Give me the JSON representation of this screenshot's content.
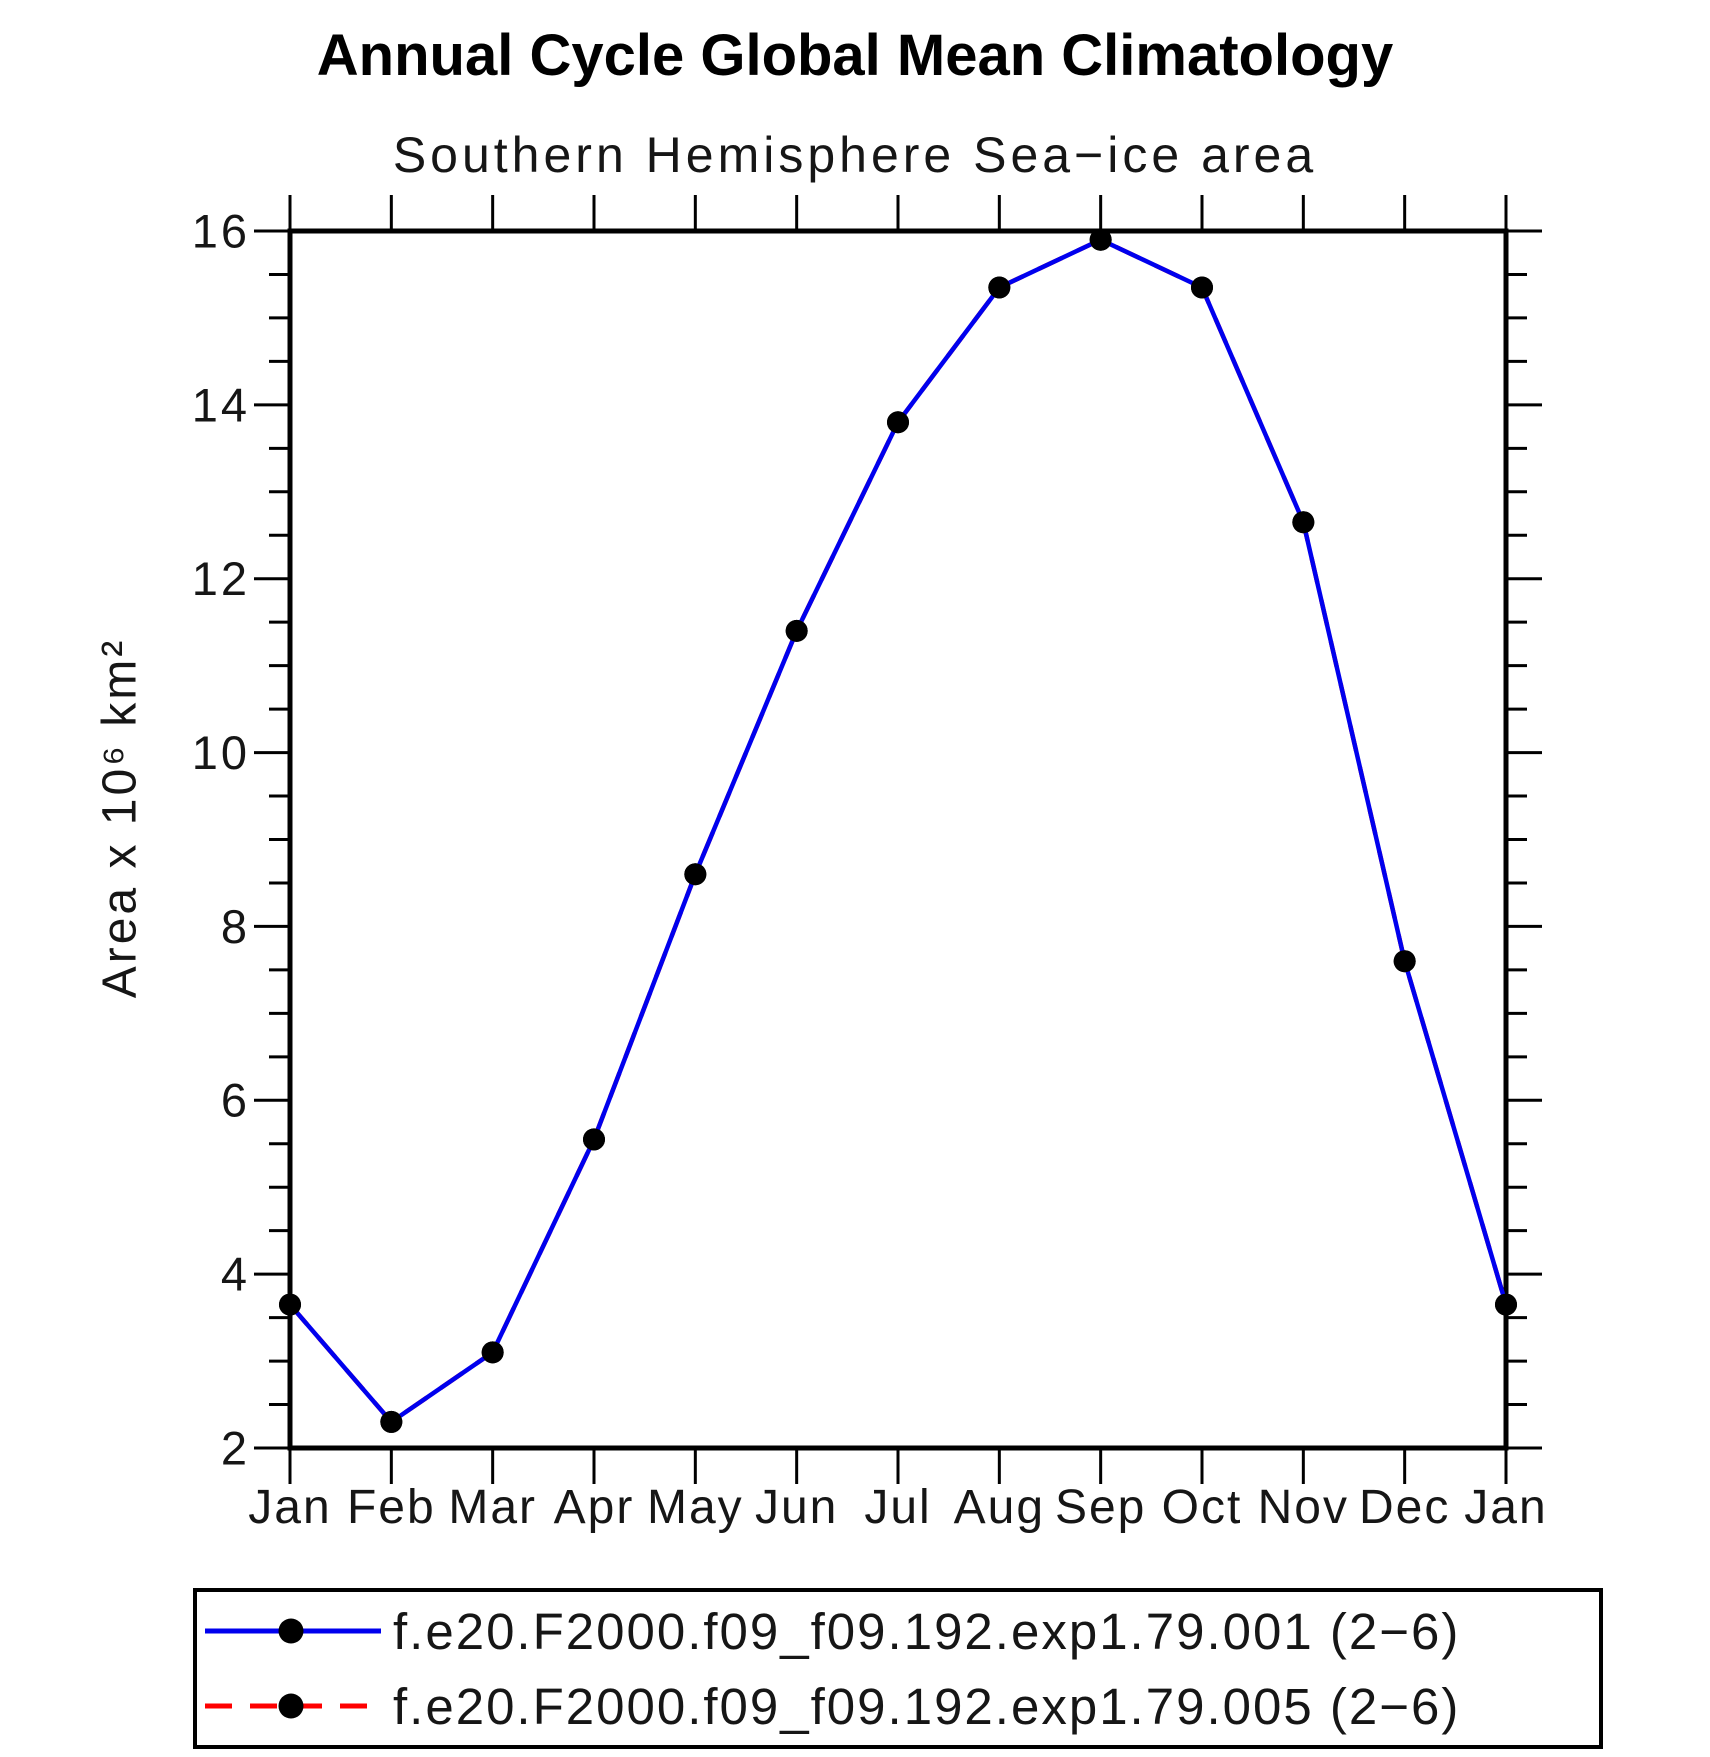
{
  "chart_data": {
    "type": "line",
    "title": "Annual Cycle Global Mean Climatology",
    "subtitle": "Southern Hemisphere Sea−ice area",
    "xlabel": "",
    "ylabel": "Area x 10⁶ km²",
    "x_categories": [
      "Jan",
      "Feb",
      "Mar",
      "Apr",
      "May",
      "Jun",
      "Jul",
      "Aug",
      "Sep",
      "Oct",
      "Nov",
      "Dec",
      "Jan"
    ],
    "ylim": [
      2,
      16
    ],
    "ytick_major_interval": 2,
    "ytick_minor_interval": 0.5,
    "ytick_labels": [
      "2",
      "4",
      "6",
      "8",
      "10",
      "12",
      "14",
      "16"
    ],
    "grid": false,
    "legend_position": "below-plot",
    "marker_color": "#000000",
    "series": [
      {
        "name": "f.e20.F2000.f09_f09.192.exp1.79.001 (2−6)",
        "color": "#0000EE",
        "line_style": "solid",
        "marker": "filled-circle",
        "values": [
          3.65,
          2.3,
          3.1,
          5.55,
          8.6,
          11.4,
          13.8,
          15.35,
          15.9,
          15.35,
          12.65,
          7.6,
          3.65
        ]
      },
      {
        "name": "f.e20.F2000.f09_f09.192.exp1.79.005 (2−6)",
        "color": "#FF0000",
        "line_style": "dashed",
        "marker": "filled-circle",
        "values": [
          3.65,
          2.3,
          3.1,
          5.55,
          8.6,
          11.4,
          13.8,
          15.35,
          15.9,
          15.35,
          12.65,
          7.6,
          3.65
        ]
      }
    ]
  }
}
